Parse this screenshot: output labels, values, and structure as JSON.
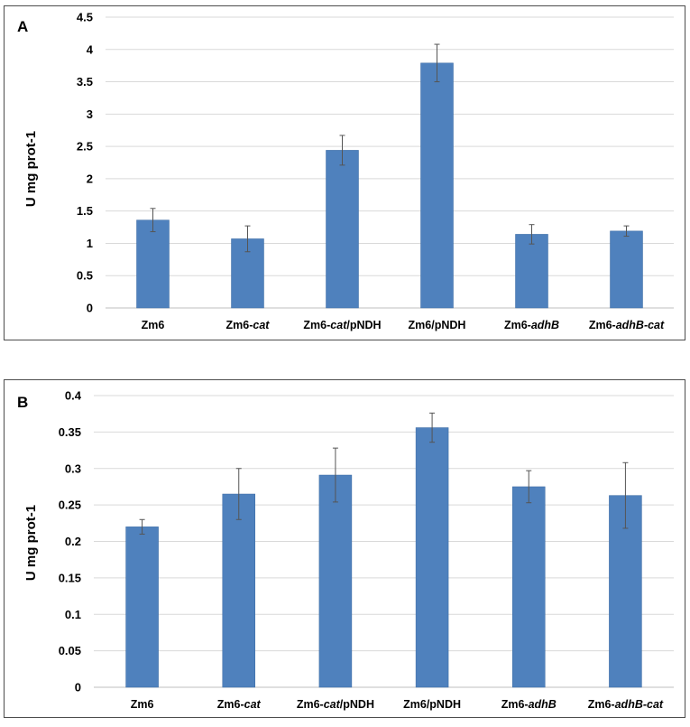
{
  "colors": {
    "bar": "#4f81bd",
    "grid": "#d9d9d9",
    "error_bar": "#555555"
  },
  "chart_data": [
    {
      "panel": "A",
      "type": "bar",
      "title": "",
      "xlabel": "",
      "ylabel": "U mg prot-1",
      "ylim": [
        0,
        4.5
      ],
      "yticks": [
        "0",
        "0.5",
        "1",
        "1.5",
        "2",
        "2.5",
        "3",
        "3.5",
        "4",
        "4.5"
      ],
      "ytick_values": [
        0,
        0.5,
        1,
        1.5,
        2,
        2.5,
        3,
        3.5,
        4,
        4.5
      ],
      "categories": [
        [
          {
            "t": "Zm6",
            "i": false
          }
        ],
        [
          {
            "t": "Zm6-",
            "i": false
          },
          {
            "t": "cat",
            "i": true
          }
        ],
        [
          {
            "t": "Zm6-",
            "i": false
          },
          {
            "t": "cat",
            "i": true
          },
          {
            "t": "/pNDH",
            "i": false
          }
        ],
        [
          {
            "t": "Zm6/pNDH",
            "i": false
          }
        ],
        [
          {
            "t": "Zm6-",
            "i": false
          },
          {
            "t": "adhB",
            "i": true
          }
        ],
        [
          {
            "t": "Zm6-",
            "i": false
          },
          {
            "t": "adhB-cat",
            "i": true
          }
        ]
      ],
      "values": [
        1.36,
        1.07,
        2.44,
        3.79,
        1.14,
        1.19
      ],
      "errors": [
        0.18,
        0.2,
        0.23,
        0.29,
        0.15,
        0.08
      ]
    },
    {
      "panel": "B",
      "type": "bar",
      "title": "",
      "xlabel": "",
      "ylabel": "U mg prot-1",
      "ylim": [
        0,
        0.4
      ],
      "yticks": [
        "0",
        "0.05",
        "0.1",
        "0.15",
        "0.2",
        "0.25",
        "0.3",
        "0.35",
        "0.4"
      ],
      "ytick_values": [
        0,
        0.05,
        0.1,
        0.15,
        0.2,
        0.25,
        0.3,
        0.35,
        0.4
      ],
      "categories": [
        [
          {
            "t": "Zm6",
            "i": false
          }
        ],
        [
          {
            "t": "Zm6-",
            "i": false
          },
          {
            "t": "cat",
            "i": true
          }
        ],
        [
          {
            "t": "Zm6-",
            "i": false
          },
          {
            "t": "cat",
            "i": true
          },
          {
            "t": "/pNDH",
            "i": false
          }
        ],
        [
          {
            "t": "Zm6/pNDH",
            "i": false
          }
        ],
        [
          {
            "t": "Zm6-",
            "i": false
          },
          {
            "t": "adhB",
            "i": true
          }
        ],
        [
          {
            "t": "Zm6-",
            "i": false
          },
          {
            "t": "adhB-cat",
            "i": true
          }
        ]
      ],
      "values": [
        0.22,
        0.265,
        0.291,
        0.356,
        0.275,
        0.263
      ],
      "errors": [
        0.01,
        0.035,
        0.037,
        0.02,
        0.022,
        0.045
      ]
    }
  ]
}
